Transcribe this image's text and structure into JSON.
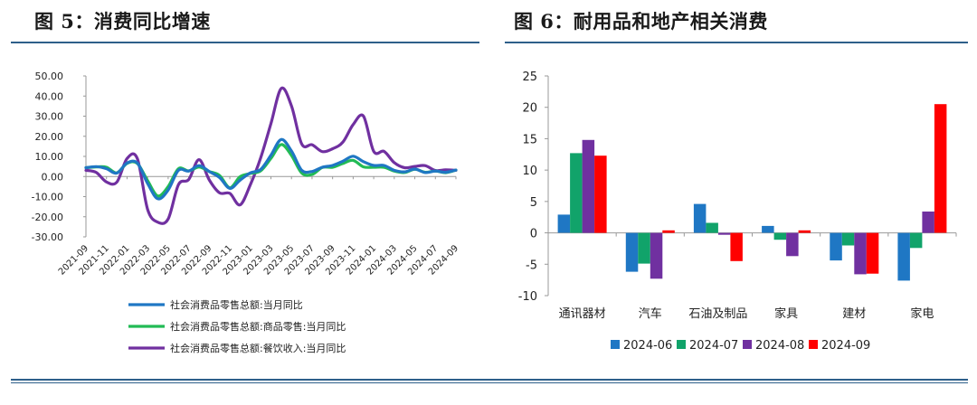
{
  "titles": {
    "left": "图 5：消费同比增速",
    "right": "图 6：耐用品和地产相关消费"
  },
  "chart_data": [
    {
      "type": "line",
      "y_range": [
        -30,
        50
      ],
      "y_ticks": [
        "50.00",
        "40.00",
        "30.00",
        "20.00",
        "10.00",
        "0.00",
        "-10.00",
        "-20.00",
        "-30.00"
      ],
      "x_ticks": [
        "2021-09",
        "2021-11",
        "2022-01",
        "2022-03",
        "2022-05",
        "2022-07",
        "2022-09",
        "2022-11",
        "2023-01",
        "2023-03",
        "2023-05",
        "2023-07",
        "2023-09",
        "2023-11",
        "2024-01",
        "2024-03",
        "2024-05",
        "2024-07",
        "2024-09"
      ],
      "x_months": [
        "2021-09",
        "2021-10",
        "2021-11",
        "2021-12",
        "2022-01",
        "2022-02",
        "2022-03",
        "2022-04",
        "2022-05",
        "2022-06",
        "2022-07",
        "2022-08",
        "2022-09",
        "2022-10",
        "2022-11",
        "2022-12",
        "2023-01",
        "2023-02",
        "2023-03",
        "2023-04",
        "2023-05",
        "2023-06",
        "2023-07",
        "2023-08",
        "2023-09",
        "2023-10",
        "2023-11",
        "2023-12",
        "2024-01",
        "2024-02",
        "2024-03",
        "2024-04",
        "2024-05",
        "2024-06",
        "2024-07",
        "2024-08",
        "2024-09"
      ],
      "series": [
        {
          "name": "社会消费品零售总额:当月同比",
          "color": "#1f77c4",
          "values": [
            4.4,
            4.9,
            3.9,
            1.7,
            6.7,
            6.7,
            -3.5,
            -11.1,
            -6.7,
            3.1,
            2.7,
            5.4,
            2.5,
            -0.5,
            -5.9,
            -1.8,
            1.8,
            3.5,
            10.6,
            18.4,
            12.7,
            3.1,
            2.5,
            4.6,
            5.5,
            7.6,
            10.1,
            7.4,
            5.5,
            5.5,
            3.1,
            2.3,
            3.7,
            2.0,
            2.7,
            2.1,
            3.2
          ]
        },
        {
          "name": "社会消费品零售总额:商品零售:当月同比",
          "color": "#22bb55",
          "values": [
            4.4,
            4.8,
            4.6,
            1.8,
            6.5,
            6.5,
            -2.1,
            -9.7,
            -5.0,
            3.9,
            2.8,
            4.7,
            2.5,
            0.5,
            -5.6,
            -0.1,
            1.5,
            2.8,
            9.0,
            15.9,
            10.5,
            1.7,
            1.0,
            4.5,
            4.6,
            6.5,
            8.0,
            4.8,
            4.6,
            4.6,
            2.7,
            2.0,
            3.6,
            2.1,
            2.7,
            1.9,
            3.2
          ]
        },
        {
          "name": "社会消费品零售总额:餐饮收入:当月同比",
          "color": "#7030a0",
          "values": [
            3.1,
            2.0,
            -2.7,
            -2.8,
            8.9,
            8.9,
            -16.4,
            -22.7,
            -21.1,
            -4.0,
            -1.5,
            8.4,
            -1.7,
            -8.1,
            -8.4,
            -14.1,
            -4.0,
            9.2,
            26.3,
            43.8,
            35.1,
            16.1,
            15.8,
            12.4,
            13.8,
            17.1,
            25.8,
            30.0,
            12.5,
            12.5,
            6.9,
            4.4,
            5.0,
            5.4,
            3.0,
            3.3,
            3.1
          ]
        }
      ]
    },
    {
      "type": "bar",
      "y_range": [
        -10,
        25
      ],
      "y_ticks": [
        "25",
        "20",
        "15",
        "10",
        "5",
        "0",
        "-5",
        "-10"
      ],
      "categories": [
        "通讯器材",
        "汽车",
        "石油及制品",
        "家具",
        "建材",
        "家电"
      ],
      "series": [
        {
          "name": "2024-06",
          "color": "#1f77c4",
          "values": [
            2.9,
            -6.2,
            4.6,
            1.1,
            -4.4,
            -7.6
          ]
        },
        {
          "name": "2024-07",
          "color": "#11a36a",
          "values": [
            12.7,
            -4.9,
            1.6,
            -1.1,
            -2.0,
            -2.4
          ]
        },
        {
          "name": "2024-08",
          "color": "#7030a0",
          "values": [
            14.8,
            -7.3,
            -0.3,
            -3.7,
            -6.6,
            3.4
          ]
        },
        {
          "name": "2024-09",
          "color": "#ff0000",
          "values": [
            12.3,
            0.4,
            -4.5,
            0.4,
            -6.5,
            20.5
          ]
        }
      ]
    }
  ]
}
